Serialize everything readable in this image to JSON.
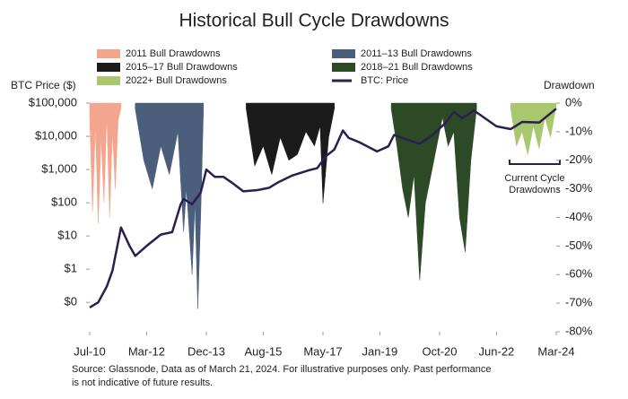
{
  "chart_data": {
    "type": "combo",
    "title": "Historical Bull Cycle Drawdowns",
    "y_label": "BTC Price ($)",
    "y2_label": "Drawdown",
    "log_y": true,
    "xlim": [
      "2010-07",
      "2024-03"
    ],
    "xticks": [
      {
        "value": "2010-07",
        "label": "Jul-10"
      },
      {
        "value": "2012-03",
        "label": "Mar-12"
      },
      {
        "value": "2013-12",
        "label": "Dec-13"
      },
      {
        "value": "2015-08",
        "label": "Aug-15"
      },
      {
        "value": "2017-05",
        "label": "May-17"
      },
      {
        "value": "2019-01",
        "label": "Jan-19"
      },
      {
        "value": "2020-10",
        "label": "Oct-20"
      },
      {
        "value": "2022-06",
        "label": "Jun-22"
      },
      {
        "value": "2024-03",
        "label": "Mar-24"
      }
    ],
    "ylim": [
      0.013,
      100000
    ],
    "yticks": [
      {
        "value": 0.1,
        "label": "$0"
      },
      {
        "value": 1,
        "label": "$1"
      },
      {
        "value": 10,
        "label": "$10"
      },
      {
        "value": 100,
        "label": "$100"
      },
      {
        "value": 1000,
        "label": "$1,000"
      },
      {
        "value": 10000,
        "label": "$10,000"
      },
      {
        "value": 100000,
        "label": "$100,000"
      }
    ],
    "y2lim": [
      -80,
      0
    ],
    "y2ticks": [
      {
        "value": 0,
        "label": "0%"
      },
      {
        "value": -10,
        "label": "-10%"
      },
      {
        "value": -20,
        "label": "-20%"
      },
      {
        "value": -30,
        "label": "-30%"
      },
      {
        "value": -40,
        "label": "-40%"
      },
      {
        "value": -50,
        "label": "-50%"
      },
      {
        "value": -60,
        "label": "-60%"
      },
      {
        "value": -70,
        "label": "-70%"
      },
      {
        "value": -80,
        "label": "-80%"
      }
    ],
    "series": [
      {
        "name": "2011 Bull Drawdowns",
        "type": "area",
        "axis": "y2",
        "color": "#f4a58e",
        "x": [
          "2010-07",
          "2010-08",
          "2010-09",
          "2010-10",
          "2010-11",
          "2010-12",
          "2011-01",
          "2011-02",
          "2011-03",
          "2011-04",
          "2011-05",
          "2011-06"
        ],
        "values": [
          -5,
          -38,
          -8,
          -42,
          -12,
          -35,
          -4,
          -40,
          -10,
          -30,
          -6,
          -2
        ]
      },
      {
        "name": "2011–13 Bull Drawdowns",
        "type": "area",
        "axis": "y2",
        "color": "#4b5f7d",
        "x": [
          "2011-11",
          "2012-02",
          "2012-05",
          "2012-08",
          "2012-11",
          "2013-02",
          "2013-04",
          "2013-05",
          "2013-07",
          "2013-08",
          "2013-09",
          "2013-10",
          "2013-11"
        ],
        "values": [
          -2,
          -20,
          -30,
          -15,
          -25,
          -10,
          -45,
          -30,
          -60,
          -35,
          -72,
          -40,
          -2
        ]
      },
      {
        "name": "2015–17 Bull Drawdowns",
        "type": "area",
        "axis": "y2",
        "color": "#1b1b1b",
        "x": [
          "2015-02",
          "2015-05",
          "2015-08",
          "2015-11",
          "2016-02",
          "2016-05",
          "2016-08",
          "2016-11",
          "2017-02",
          "2017-04",
          "2017-05",
          "2017-07",
          "2017-09"
        ],
        "values": [
          -2,
          -22,
          -15,
          -25,
          -12,
          -20,
          -18,
          -10,
          -15,
          -8,
          -35,
          -12,
          -2
        ]
      },
      {
        "name": "2018–21 Bull Drawdowns",
        "type": "area",
        "axis": "y2",
        "color": "#2c4a26",
        "x": [
          "2019-05",
          "2019-07",
          "2019-09",
          "2019-11",
          "2020-01",
          "2020-03",
          "2020-05",
          "2020-08",
          "2020-11",
          "2021-01",
          "2021-03",
          "2021-05",
          "2021-07",
          "2021-09",
          "2021-11"
        ],
        "values": [
          -2,
          -15,
          -30,
          -40,
          -25,
          -62,
          -35,
          -20,
          -5,
          -15,
          -10,
          -40,
          -52,
          -20,
          -2
        ]
      },
      {
        "name": "2022+ Bull Drawdowns",
        "type": "area",
        "axis": "y2",
        "color": "#a9c76c",
        "x": [
          "2022-11",
          "2023-01",
          "2023-03",
          "2023-05",
          "2023-07",
          "2023-09",
          "2023-11",
          "2024-01",
          "2024-03"
        ],
        "values": [
          -2,
          -15,
          -10,
          -18,
          -8,
          -16,
          -5,
          -12,
          -1
        ]
      },
      {
        "name": "BTC: Price",
        "type": "line",
        "axis": "y",
        "color": "#2b1f4f",
        "x": [
          "2010-07",
          "2010-10",
          "2011-01",
          "2011-03",
          "2011-06",
          "2011-09",
          "2011-11",
          "2012-03",
          "2012-08",
          "2012-12",
          "2013-03",
          "2013-04",
          "2013-07",
          "2013-10",
          "2013-12",
          "2014-03",
          "2014-06",
          "2014-09",
          "2015-01",
          "2015-06",
          "2015-10",
          "2016-01",
          "2016-06",
          "2016-12",
          "2017-03",
          "2017-06",
          "2017-09",
          "2017-12",
          "2018-02",
          "2018-06",
          "2018-12",
          "2019-04",
          "2019-06",
          "2019-12",
          "2020-03",
          "2020-07",
          "2020-12",
          "2021-03",
          "2021-06",
          "2021-10",
          "2022-01",
          "2022-06",
          "2022-11",
          "2023-03",
          "2023-09",
          "2023-12",
          "2024-03"
        ],
        "values": [
          0.07,
          0.1,
          0.3,
          0.9,
          18,
          5,
          2.5,
          5,
          11,
          13,
          90,
          130,
          90,
          200,
          1000,
          600,
          600,
          400,
          220,
          240,
          280,
          400,
          650,
          950,
          1100,
          2500,
          4000,
          15000,
          9000,
          6500,
          3500,
          5000,
          11000,
          7200,
          6000,
          10000,
          25000,
          55000,
          35000,
          60000,
          40000,
          20000,
          16500,
          27000,
          26000,
          42000,
          68000
        ]
      }
    ],
    "annotation": [
      "Current Cycle",
      "Drawdowns"
    ],
    "source": [
      "Source: Glassnode, Data as of March 21, 2024. For illustrative purposes only. Past performance",
      "is not indicative of future results."
    ]
  }
}
